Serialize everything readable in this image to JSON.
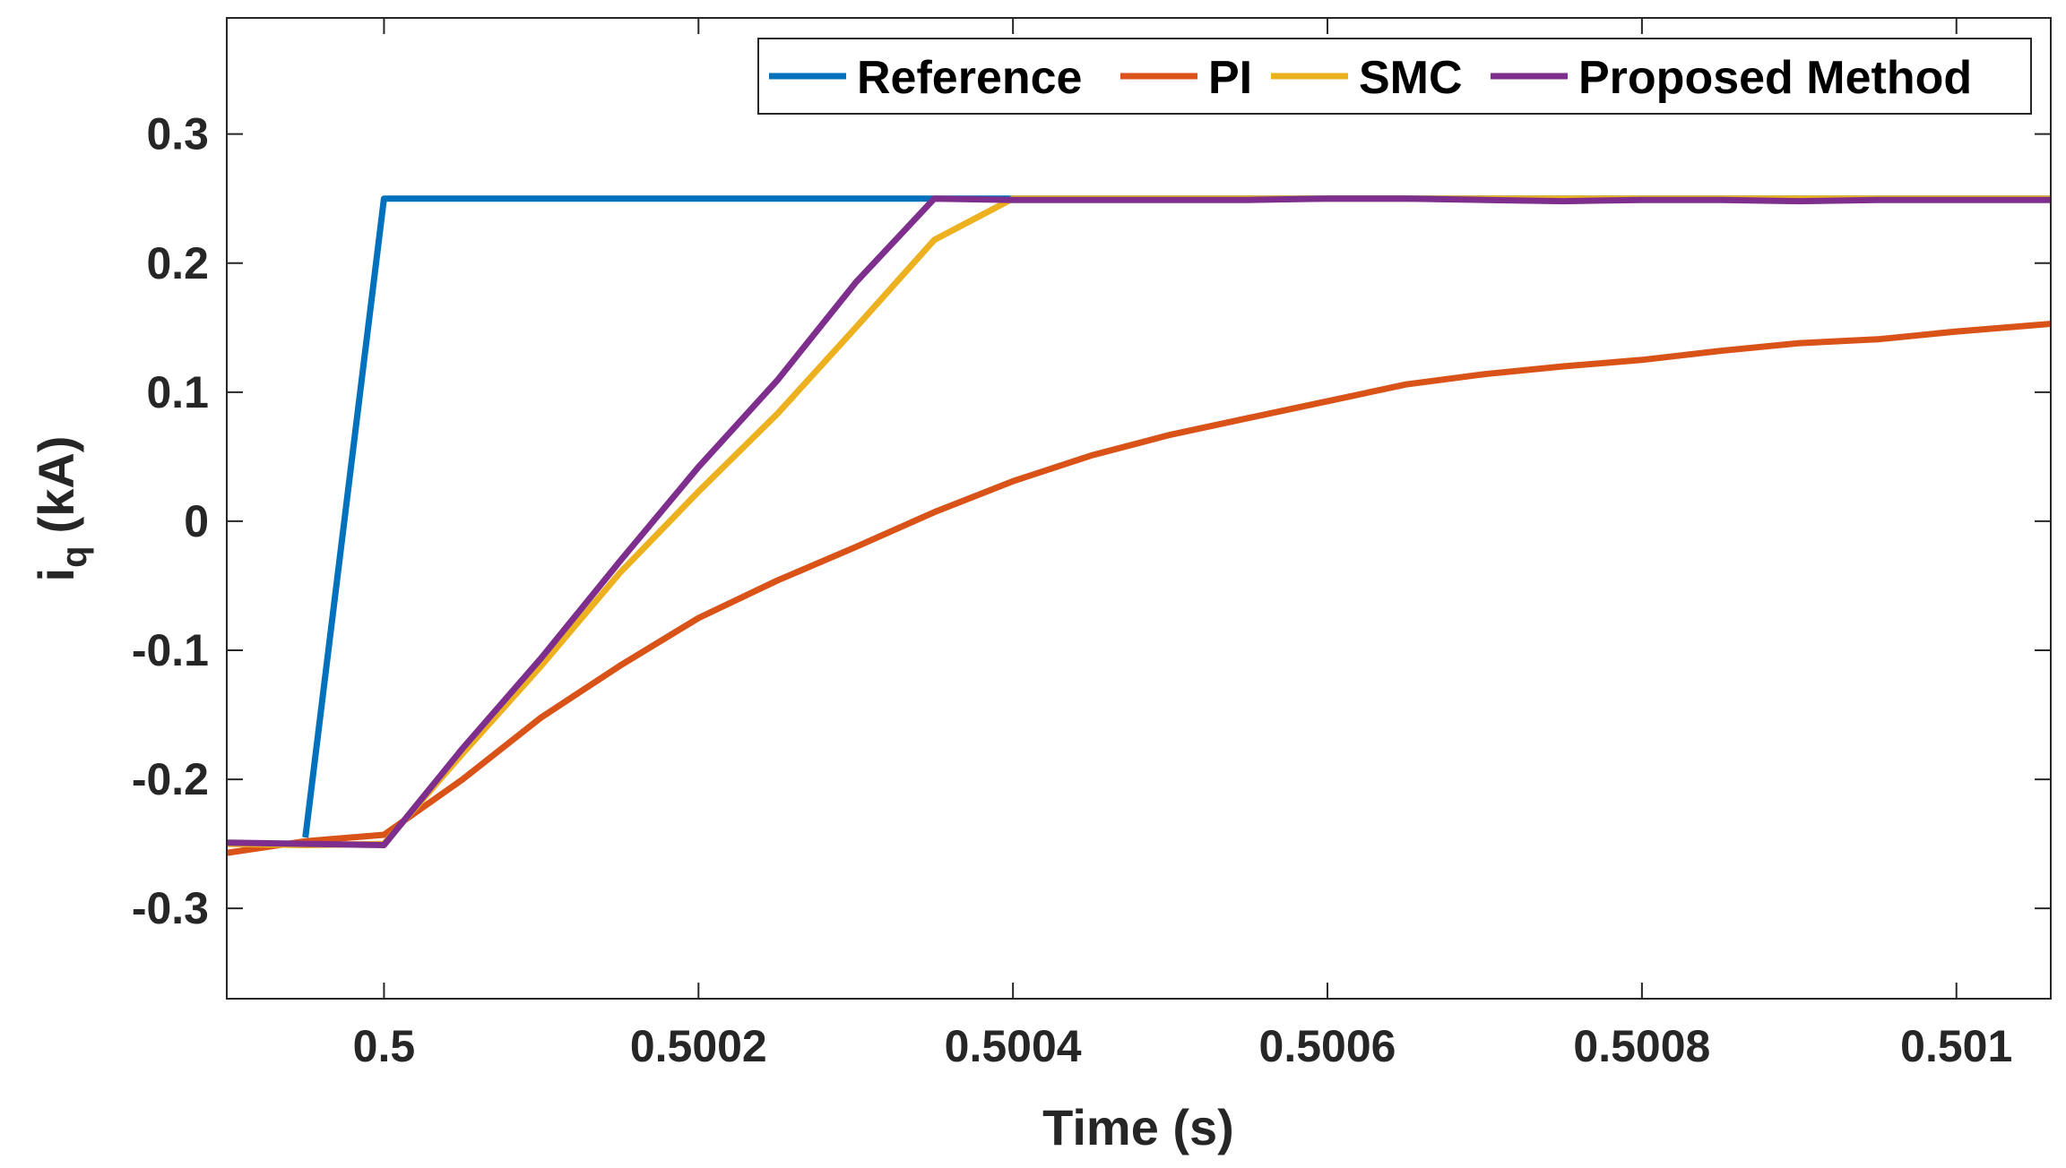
{
  "chart_data": {
    "type": "line",
    "title": "",
    "xlabel": "Time (s)",
    "ylabel": "i",
    "ylabel_subscript": "q",
    "ylabel_unit": "(kA)",
    "xlim": [
      0.4999,
      0.50106
    ],
    "ylim": [
      -0.37,
      0.39
    ],
    "xticks": [
      0.5,
      0.5002,
      0.5004,
      0.5006,
      0.5008,
      0.501
    ],
    "xtick_labels": [
      "0.5",
      "0.5002",
      "0.5004",
      "0.5006",
      "0.5008",
      "0.501"
    ],
    "yticks": [
      -0.3,
      -0.2,
      -0.1,
      0,
      0.1,
      0.2,
      0.3
    ],
    "ytick_labels": [
      "-0.3",
      "-0.2",
      "-0.1",
      "0",
      "0.1",
      "0.2",
      "0.3"
    ],
    "grid": false,
    "legend_position": "top-right",
    "series": [
      {
        "name": "Reference",
        "color": "#0072BD",
        "x": [
          0.49995,
          0.5,
          0.50106
        ],
        "y": [
          -0.245,
          0.25,
          0.25
        ]
      },
      {
        "name": "PI",
        "color": "#D95319",
        "x": [
          0.4999,
          0.49995,
          0.5,
          0.50005,
          0.5001,
          0.50015,
          0.5002,
          0.50025,
          0.5003,
          0.50035,
          0.5004,
          0.50045,
          0.5005,
          0.50055,
          0.5006,
          0.50065,
          0.5007,
          0.50075,
          0.5008,
          0.50085,
          0.5009,
          0.50095,
          0.501,
          0.50106
        ],
        "y": [
          -0.257,
          -0.248,
          -0.243,
          -0.2,
          -0.152,
          -0.112,
          -0.075,
          -0.046,
          -0.02,
          0.007,
          0.031,
          0.051,
          0.067,
          0.08,
          0.093,
          0.106,
          0.114,
          0.12,
          0.125,
          0.132,
          0.138,
          0.141,
          0.147,
          0.153
        ]
      },
      {
        "name": "SMC",
        "color": "#EDB120",
        "x": [
          0.4999,
          0.49995,
          0.5,
          0.50005,
          0.5001,
          0.50015,
          0.5002,
          0.50025,
          0.5003,
          0.50035,
          0.5004,
          0.50045,
          0.5005,
          0.50055,
          0.5006,
          0.50065,
          0.5007,
          0.50075,
          0.5008,
          0.50085,
          0.5009,
          0.50095,
          0.501,
          0.50106
        ],
        "y": [
          -0.25,
          -0.251,
          -0.25,
          -0.18,
          -0.112,
          -0.04,
          0.023,
          0.083,
          0.15,
          0.218,
          0.25,
          0.25,
          0.25,
          0.25,
          0.25,
          0.25,
          0.25,
          0.25,
          0.25,
          0.25,
          0.25,
          0.25,
          0.25,
          0.25
        ]
      },
      {
        "name": "Proposed Method",
        "color": "#7E2F8E",
        "x": [
          0.4999,
          0.49995,
          0.5,
          0.50005,
          0.5001,
          0.50015,
          0.5002,
          0.50025,
          0.5003,
          0.50035,
          0.5004,
          0.50045,
          0.5005,
          0.50055,
          0.5006,
          0.50065,
          0.5007,
          0.50075,
          0.5008,
          0.50085,
          0.5009,
          0.50095,
          0.501,
          0.50106
        ],
        "y": [
          -0.249,
          -0.25,
          -0.251,
          -0.176,
          -0.106,
          -0.031,
          0.042,
          0.109,
          0.185,
          0.25,
          0.249,
          0.249,
          0.249,
          0.249,
          0.25,
          0.25,
          0.249,
          0.248,
          0.249,
          0.249,
          0.248,
          0.249,
          0.249,
          0.249
        ]
      }
    ]
  }
}
